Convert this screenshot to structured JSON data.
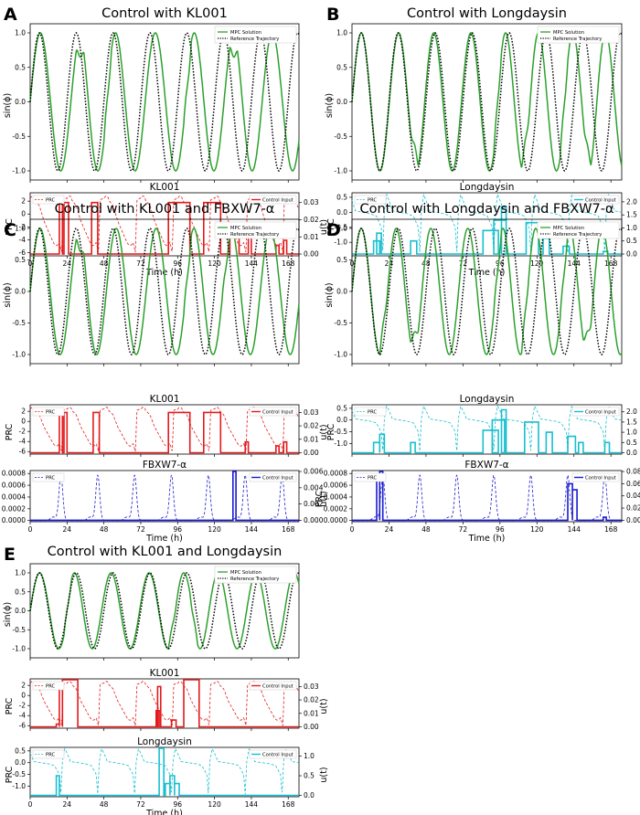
{
  "colors": {
    "mpc_solution": "#2ca02c",
    "reference": "#000000",
    "kl001": "#e31a1c",
    "longdaysin": "#17becf",
    "fbxw7": "#1a1acf"
  },
  "chart_data": [
    {
      "panel": "A",
      "title": "Control with KL001",
      "phase": {
        "type": "line",
        "ylabel": "sin(ϕ)",
        "xlim": [
          0,
          175
        ],
        "ylim": [
          -1,
          1
        ],
        "yticks": [
          "1.0",
          "0.5",
          "0.0",
          "-0.5",
          "-1.0"
        ],
        "legend": [
          "MPC Solution",
          "Reference Trajectory"
        ],
        "reference_period_h": 24.0,
        "mpc_period_h": 26.5,
        "events": [
          [
            30,
            0.6
          ],
          [
            48,
            0.5
          ],
          [
            100,
            0.4
          ],
          [
            130,
            0.4
          ]
        ]
      },
      "drugs": [
        {
          "title": "KL001",
          "color": "kl001",
          "prc_shape": "kl001",
          "ylabel_left": "PRC",
          "ylabel_right": "u(t)",
          "yticks_left": [
            "2",
            "0",
            "-2",
            "-4",
            "-6"
          ],
          "yticks_right": [
            "0.03",
            "0.02",
            "0.01",
            "0.00"
          ],
          "u_max": 0.035,
          "u_ticks": [
            0,
            0.01,
            0.02,
            0.03
          ],
          "legend": [
            "PRC",
            "Control Input"
          ],
          "pulses": [
            [
              19,
              21,
              0.03
            ],
            [
              22,
              25,
              0.03
            ],
            [
              40,
              44,
              0.03
            ],
            [
              90,
              104,
              0.03
            ],
            [
              113,
              124,
              0.03
            ],
            [
              130,
              136,
              0.018
            ],
            [
              142,
              144,
              0.012
            ],
            [
              160,
              162,
              0.005
            ],
            [
              165,
              167,
              0.008
            ]
          ]
        }
      ]
    },
    {
      "panel": "B",
      "title": "Control with Longdaysin",
      "phase": {
        "type": "line",
        "ylabel": "sin(ϕ)",
        "xlim": [
          0,
          175
        ],
        "ylim": [
          -1,
          1
        ],
        "yticks": [
          "1.0",
          "0.5",
          "0.0",
          "-0.5",
          "-1.0"
        ],
        "legend": [
          "MPC Solution",
          "Reference Trajectory"
        ],
        "reference_period_h": 24.0,
        "mpc_period_h": 24.2,
        "events": [
          [
            38,
            0.4
          ],
          [
            92,
            0.6
          ],
          [
            110,
            0.7
          ],
          [
            135,
            0.5
          ],
          [
            150,
            0.7
          ]
        ]
      },
      "drugs": [
        {
          "title": "Longdaysin",
          "color": "longdaysin",
          "prc_shape": "longdaysin",
          "ylabel_left": "PRC",
          "ylabel_right": "",
          "yticks_left": [
            "0.5",
            "0.0",
            "-0.5",
            "-1.0"
          ],
          "yticks_right": [
            "2.0",
            "1.5",
            "1.0",
            "0.5",
            "0.0"
          ],
          "u_max": 2.3,
          "u_ticks": [
            0,
            0.5,
            1.0,
            1.5,
            2.0
          ],
          "legend": [
            "PRC",
            "Control Input"
          ],
          "pulses": [
            [
              14,
              18,
              0.5
            ],
            [
              16,
              19,
              0.8
            ],
            [
              38,
              42,
              0.5
            ],
            [
              85,
              95,
              0.9
            ],
            [
              92,
              100,
              1.3
            ],
            [
              97,
              100,
              1.8
            ],
            [
              113,
              121,
              1.2
            ],
            [
              124,
              128,
              0.6
            ],
            [
              137,
              141,
              0.3
            ],
            [
              163,
              166,
              0.1
            ]
          ]
        }
      ]
    },
    {
      "panel": "C",
      "title": "Control with KL001 and FBXW7-α",
      "phase": {
        "type": "line",
        "ylabel": "sin(ϕ)",
        "xlim": [
          0,
          175
        ],
        "ylim": [
          -1,
          1
        ],
        "yticks": [
          "1.0",
          "0.5",
          "0.0",
          "-0.5",
          "-1.0"
        ],
        "legend": [
          "MPC Solution",
          "Reference Trajectory"
        ],
        "reference_period_h": 24.0,
        "mpc_period_h": 26.0,
        "events": [
          [
            30,
            0.6
          ],
          [
            100,
            0.5
          ],
          [
            125,
            0.4
          ]
        ]
      },
      "drugs": [
        {
          "title": "KL001",
          "color": "kl001",
          "prc_shape": "kl001",
          "ylabel_left": "PRC",
          "ylabel_right": "u(t)",
          "yticks_left": [
            "2",
            "0",
            "-2",
            "-4",
            "-6"
          ],
          "yticks_right": [
            "0.03",
            "0.02",
            "0.01",
            "0.00"
          ],
          "u_max": 0.035,
          "u_ticks": [
            0,
            0.01,
            0.02,
            0.03
          ],
          "legend": [
            "PRC",
            "Control Input"
          ],
          "pulses": [
            [
              19,
              21,
              0.03
            ],
            [
              22,
              24,
              0.03
            ],
            [
              41,
              45,
              0.03
            ],
            [
              90,
              104,
              0.03
            ],
            [
              113,
              124,
              0.03
            ],
            [
              140,
              142,
              0.008
            ],
            [
              160,
              162,
              0.005
            ],
            [
              165,
              167,
              0.008
            ]
          ]
        },
        {
          "title": "FBXW7-α",
          "color": "fbxw7",
          "prc_shape": "fbxw7",
          "ylabel_left": "PRC",
          "ylabel_right": "u(t)",
          "yticks_left": [
            "0.0008",
            "0.0006",
            "0.0004",
            "0.0002",
            "0.0000"
          ],
          "yticks_right": [
            "0.006",
            "0.004",
            "0.002",
            "0.000"
          ],
          "u_max": 0.006,
          "u_ticks": [
            0,
            0.002,
            0.004,
            0.006
          ],
          "legend": [
            "PRC",
            "Control Input"
          ],
          "pulses": [
            [
              132,
              134,
              0.006
            ]
          ]
        }
      ]
    },
    {
      "panel": "D",
      "title": "Control with Longdaysin and FBXW7-α",
      "phase": {
        "type": "line",
        "ylabel": "sin(ϕ)",
        "xlim": [
          0,
          175
        ],
        "ylim": [
          -1,
          1
        ],
        "yticks": [
          "1.0",
          "0.5",
          "0.0",
          "-0.5",
          "-1.0"
        ],
        "legend": [
          "MPC Solution",
          "Reference Trajectory"
        ],
        "reference_period_h": 24.0,
        "mpc_period_h": 24.2,
        "events": [
          [
            18,
            0.5
          ],
          [
            38,
            0.4
          ],
          [
            92,
            0.6
          ],
          [
            110,
            0.7
          ],
          [
            135,
            0.6
          ],
          [
            150,
            0.7
          ]
        ]
      },
      "drugs": [
        {
          "title": "Longdaysin",
          "color": "longdaysin",
          "prc_shape": "longdaysin",
          "ylabel_left": "PRC",
          "ylabel_right": "",
          "yticks_left": [
            "0.5",
            "0.0",
            "-0.5",
            "-1.0"
          ],
          "yticks_right": [
            "2.0",
            "1.5",
            "1.0",
            "0.5",
            "0.0"
          ],
          "u_max": 2.3,
          "u_ticks": [
            0,
            0.5,
            1.0,
            1.5,
            2.0
          ],
          "legend": [
            "PRC",
            "Control Input"
          ],
          "pulses": [
            [
              14,
              18,
              0.5
            ],
            [
              18,
              21,
              0.9
            ],
            [
              38,
              41,
              0.5
            ],
            [
              85,
              95,
              1.1
            ],
            [
              91,
              99,
              1.6
            ],
            [
              97,
              100,
              2.1
            ],
            [
              112,
              121,
              1.5
            ],
            [
              126,
              130,
              1.0
            ],
            [
              140,
              145,
              0.8
            ],
            [
              147,
              150,
              0.5
            ],
            [
              164,
              167,
              0.5
            ]
          ]
        },
        {
          "title": "FBXW7-α",
          "color": "fbxw7",
          "prc_shape": "fbxw7",
          "ylabel_left": "PRC",
          "ylabel_right": "",
          "yticks_left": [
            "0.0008",
            "0.0006",
            "0.0004",
            "0.0002",
            "0.0000"
          ],
          "yticks_right": [
            "0.08",
            "0.06",
            "0.04",
            "0.02",
            "0.00"
          ],
          "u_max": 0.08,
          "u_ticks": [
            0,
            0.02,
            0.04,
            0.06,
            0.08
          ],
          "legend": [
            "PRC",
            "Control Input"
          ],
          "pulses": [
            [
              16,
              18,
              0.075
            ],
            [
              18,
              20,
              0.08
            ],
            [
              140,
              143,
              0.06
            ],
            [
              143,
              146,
              0.05
            ],
            [
              163,
              165,
              0.005
            ]
          ]
        }
      ]
    },
    {
      "panel": "E",
      "title": "Control with KL001 and Longdaysin",
      "phase": {
        "type": "line",
        "ylabel": "sin(ϕ)",
        "xlim": [
          0,
          175
        ],
        "ylim": [
          -1,
          1
        ],
        "yticks": [
          "1.0",
          "0.5",
          "0.0",
          "-0.5",
          "-1.0"
        ],
        "legend": [
          "MPC Solution",
          "Reference Trajectory"
        ],
        "reference_period_h": 24.0,
        "mpc_period_h": 24.8,
        "events": [
          [
            22,
            0.8
          ],
          [
            90,
            0.7
          ],
          [
            104,
            0.5
          ]
        ]
      },
      "drugs": [
        {
          "title": "KL001",
          "color": "kl001",
          "prc_shape": "kl001",
          "ylabel_left": "PRC",
          "ylabel_right": "u(t)",
          "yticks_left": [
            "2",
            "0",
            "-2",
            "-4",
            "-6"
          ],
          "yticks_right": [
            "0.03",
            "0.02",
            "0.01",
            "0.00"
          ],
          "u_max": 0.035,
          "u_ticks": [
            0,
            0.01,
            0.02,
            0.03
          ],
          "legend": [
            "PRC",
            "Control Input"
          ],
          "pulses": [
            [
              17,
              19,
              0.002
            ],
            [
              19,
              21,
              0.03
            ],
            [
              21,
              31,
              0.035
            ],
            [
              82,
              84,
              0.012
            ],
            [
              83,
              85,
              0.03
            ],
            [
              92,
              95,
              0.005
            ],
            [
              100,
              110,
              0.035
            ]
          ]
        },
        {
          "title": "Longdaysin",
          "color": "longdaysin",
          "prc_shape": "longdaysin",
          "ylabel_left": "PRC",
          "ylabel_right": "u(t)",
          "yticks_left": [
            "0.5",
            "0.0",
            "-0.5",
            "-1.0"
          ],
          "yticks_right": [
            "1.0",
            "0.5",
            "0.0"
          ],
          "u_max": 1.2,
          "u_ticks": [
            0,
            0.5,
            1.0
          ],
          "legend": [
            "PRC",
            "Control Input"
          ],
          "pulses": [
            [
              17,
              19,
              0.5
            ],
            [
              84,
              87,
              1.2
            ],
            [
              88,
              91,
              0.3
            ],
            [
              91,
              94,
              0.5
            ],
            [
              94,
              97,
              0.3
            ]
          ]
        }
      ]
    }
  ],
  "xticks": [
    "0",
    "24",
    "48",
    "72",
    "96",
    "120",
    "144",
    "168"
  ],
  "xlabel": "Time (h)"
}
